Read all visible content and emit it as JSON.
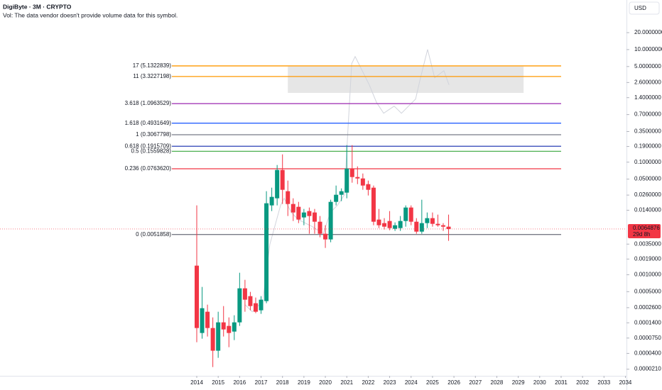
{
  "chart_data": {
    "type": "candlestick",
    "title": "DigiByte · 3M · CRYPTO",
    "subtitle": "Vol: The data vendor doesn't provide volume data for this symbol.",
    "currency": "USD",
    "log_scale": true,
    "up_color": "#089981",
    "down_color": "#f23645",
    "x": [
      2014,
      2014.25,
      2014.5,
      2014.75,
      2015,
      2015.25,
      2015.5,
      2015.75,
      2016,
      2016.25,
      2016.5,
      2016.75,
      2017,
      2017.25,
      2017.5,
      2017.75,
      2018,
      2018.25,
      2018.5,
      2018.75,
      2019,
      2019.25,
      2019.5,
      2019.75,
      2020,
      2020.25,
      2020.5,
      2020.75,
      2021,
      2021.25,
      2021.5,
      2021.75,
      2022,
      2022.25,
      2022.5,
      2022.75,
      2023,
      2023.25,
      2023.5,
      2023.75,
      2024,
      2024.25,
      2024.5,
      2024.75,
      2025,
      2025.25,
      2025.5,
      2025.75
    ],
    "open": [
      0.00145,
      9.22e-05,
      0.0002201,
      0.000113,
      4.47e-05,
      0.0001425,
      0.0001232,
      9.77e-05,
      0.0001425,
      0.0005731,
      0.0004165,
      0.0003117,
      0.0002333,
      0.00034,
      0.01705,
      0.02279,
      0.07269,
      0.03045,
      0.01807,
      0.01609,
      0.01042,
      0.01352,
      0.01276,
      0.008751,
      0.005345,
      0.004238,
      0.01971,
      0.02634,
      0.02874,
      0.07702,
      0.05438,
      0.05132,
      0.04069,
      0.0352,
      0.009548,
      0.008258,
      0.009009,
      0.006549,
      0.006741,
      0.009009,
      0.01563,
      0.008751,
      0.005831,
      0.008258,
      0.01012,
      0.008022,
      0.007571,
      0.007144
    ],
    "high": [
      0.01705,
      0.0006073,
      0.0002941,
      0.0001745,
      0.0002201,
      0.0002775,
      0.0001745,
      0.0001904,
      0.001085,
      0.0008116,
      0.0004958,
      0.0003931,
      0.0004165,
      0.03045,
      0.0352,
      0.08904,
      0.1376,
      0.04704,
      0.02279,
      0.01971,
      0.01475,
      0.01563,
      0.01475,
      0.01104,
      0.007571,
      0.02151,
      0.0384,
      0.0342,
      0.2006,
      0.2006,
      0.08402,
      0.06287,
      0.04704,
      0.0384,
      0.01475,
      0.01012,
      0.01352,
      0.008501,
      0.01104,
      0.01705,
      0.01705,
      0.01012,
      0.02151,
      0.01276,
      0.01276,
      0.0117,
      0.008258,
      0.0117
    ],
    "low": [
      6.33e-05,
      7.31e-05,
      7.98e-05,
      2.29e-05,
      3.34e-05,
      7.98e-05,
      5.16e-05,
      6.9e-05,
      0.0001232,
      0.0002201,
      0.0002333,
      0.0002077,
      0.0002018,
      0.0003117,
      0.01352,
      0.01705,
      0.01807,
      0.01104,
      0.009009,
      0.008258,
      0.007571,
      0.005345,
      0.005345,
      0.004624,
      0.002993,
      0.003775,
      0.01705,
      0.02029,
      0.02279,
      0.04313,
      0.04069,
      0.03227,
      0.02559,
      0.007571,
      0.006741,
      0.006362,
      0.006179,
      0.006003,
      0.006003,
      0.007144,
      0.007571,
      0.005345,
      0.005345,
      0.006741,
      0.007144,
      0.007144,
      0.006003,
      0.004
    ],
    "close": [
      0.000113,
      0.0002545,
      0.000113,
      4.47e-05,
      0.0001425,
      0.0001066,
      9.22e-05,
      0.0001425,
      0.0005731,
      0.0003604,
      0.0002775,
      0.0002201,
      0.0003604,
      0.0186,
      0.02415,
      0.07269,
      0.03227,
      0.01807,
      0.01276,
      0.009548,
      0.01276,
      0.01104,
      0.008751,
      0.005345,
      0.004238,
      0.01971,
      0.02634,
      0.03045,
      0.07702,
      0.05438,
      0.05132,
      0.0384,
      0.03227,
      0.008751,
      0.007571,
      0.007144,
      0.006741,
      0.007571,
      0.009009,
      0.01563,
      0.008751,
      0.005831,
      0.008258,
      0.01012,
      0.008022,
      0.007571,
      0.007144,
      0.0064876
    ],
    "overlay": {
      "color": "#d1d4dc",
      "x": [
        2016.25,
        2016.59,
        2017.08,
        2017.41,
        2017.91,
        2018.08,
        2018.41,
        2018.74,
        2019.4,
        2019.9,
        2020.23,
        2020.56,
        2020.89,
        2021.06,
        2021.23,
        2021.39,
        2021.72,
        2022.05,
        2022.39,
        2022.72,
        2023.21,
        2023.55,
        2023.88,
        2024.21,
        2024.44,
        2024.77,
        2025.1,
        2025.53,
        2025.77
      ],
      "values": [
        0.0002941,
        0.0002201,
        0.00034,
        0.00346,
        0.01705,
        0.02279,
        0.01276,
        0.009548,
        0.007144,
        0.005345,
        0.01276,
        0.01705,
        0.02634,
        0.4141,
        5.632,
        7.522,
        4.213,
        2.359,
        1.143,
        0.7395,
        0.9884,
        0.7395,
        0.9884,
        1.321,
        3.152,
        10.06,
        3.152,
        4.213,
        2.359
      ]
    },
    "zone": {
      "color": "#e0e0e0",
      "x": [
        2018.25,
        2029.25
      ],
      "y": [
        1.7,
        5
      ]
    },
    "levels": [
      {
        "label": "17 (5.1322839)",
        "value": 5.1322839,
        "color": "#ff9800"
      },
      {
        "label": "11 (3.3227198)",
        "value": 3.3227198,
        "color": "#ff9800"
      },
      {
        "label": "3.618 (1.0963529)",
        "value": 1.0963529,
        "color": "#9c27b0"
      },
      {
        "label": "1.618 (0.4931649)",
        "value": 0.4931649,
        "color": "#2962ff"
      },
      {
        "label": "1 (0.3067798)",
        "value": 0.3067798,
        "color": "#787b86"
      },
      {
        "label": "0.618 (0.1915709)",
        "value": 0.1915709,
        "color": "#2a3fb5"
      },
      {
        "label": "0.5 (0.1559828)",
        "value": 0.1559828,
        "color": "#4caf50"
      },
      {
        "label": "0.236 (0.0763620)",
        "value": 0.076362,
        "color": "#f23645"
      },
      {
        "label": "0 (0.0051858)",
        "value": 0.0051858,
        "color": "#787b86"
      }
    ],
    "last_price": {
      "value": 0.0064876,
      "countdown": "29d 8h"
    },
    "xlim": [
      2004.82,
      2034.05
    ],
    "ylim": [
      1.6e-05,
      76
    ],
    "xticks": [
      2014,
      2015,
      2016,
      2017,
      2018,
      2019,
      2020,
      2021,
      2022,
      2023,
      2024,
      2025,
      2026,
      2027,
      2028,
      2029,
      2030,
      2031,
      2032,
      2033,
      2034
    ],
    "yticks": [
      {
        "value": 20,
        "label": "20.0000000"
      },
      {
        "value": 10,
        "label": "10.0000000"
      },
      {
        "value": 5,
        "label": "5.0000000"
      },
      {
        "value": 2.6,
        "label": "2.6000000"
      },
      {
        "value": 1.4,
        "label": "1.4000000"
      },
      {
        "value": 0.7,
        "label": "0.7000000"
      },
      {
        "value": 0.35,
        "label": "0.3500000"
      },
      {
        "value": 0.19,
        "label": "0.1900000"
      },
      {
        "value": 0.1,
        "label": "0.1000000"
      },
      {
        "value": 0.05,
        "label": "0.0500000"
      },
      {
        "value": 0.026,
        "label": "0.0260000"
      },
      {
        "value": 0.014,
        "label": "0.0140000"
      },
      {
        "value": 0.0035,
        "label": "0.0035000"
      },
      {
        "value": 0.0019,
        "label": "0.0019000"
      },
      {
        "value": 0.001,
        "label": "0.0010000"
      },
      {
        "value": 0.0005,
        "label": "0.0005000"
      },
      {
        "value": 0.00026,
        "label": "0.0002600"
      },
      {
        "value": 0.00014,
        "label": "0.0001400"
      },
      {
        "value": 7.5e-05,
        "label": "0.0000750"
      },
      {
        "value": 4e-05,
        "label": "0.0000400"
      },
      {
        "value": 2.1e-05,
        "label": "0.0000210"
      }
    ]
  }
}
